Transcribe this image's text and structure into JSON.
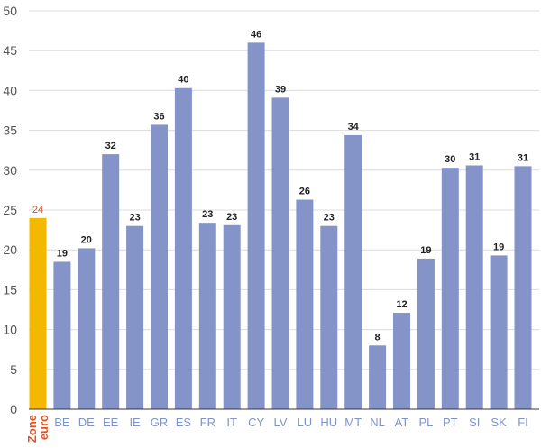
{
  "chart_data": {
    "type": "bar",
    "title": "",
    "xlabel": "",
    "ylabel": "",
    "ylim": [
      0,
      50
    ],
    "yticks": [
      0,
      5,
      10,
      15,
      20,
      25,
      30,
      35,
      40,
      45,
      50
    ],
    "grid": true,
    "legend": "none",
    "categories": [
      "Zone euro",
      "BE",
      "DE",
      "EE",
      "IE",
      "GR",
      "ES",
      "FR",
      "IT",
      "CY",
      "LV",
      "LU",
      "HU",
      "MT",
      "NL",
      "AT",
      "PL",
      "PT",
      "SI",
      "SK",
      "FI"
    ],
    "values": [
      24,
      18.5,
      20.2,
      32,
      23,
      35.7,
      40.3,
      23.4,
      23.1,
      46,
      39.1,
      26.3,
      23,
      34.4,
      8,
      12.1,
      18.9,
      30.3,
      30.6,
      19.3,
      30.5
    ],
    "data_labels": [
      "24",
      "19",
      "20",
      "32",
      "23",
      "36",
      "40",
      "23",
      "23",
      "46",
      "39",
      "26",
      "23",
      "34",
      "8",
      "12",
      "19",
      "30",
      "31",
      "19",
      "31"
    ],
    "colors": {
      "bar": "#8494c9",
      "highlight_bar": "#f5b800",
      "highlight_label": "#e5501f",
      "grid": "#dcdcdc",
      "axis": "#333333"
    }
  }
}
